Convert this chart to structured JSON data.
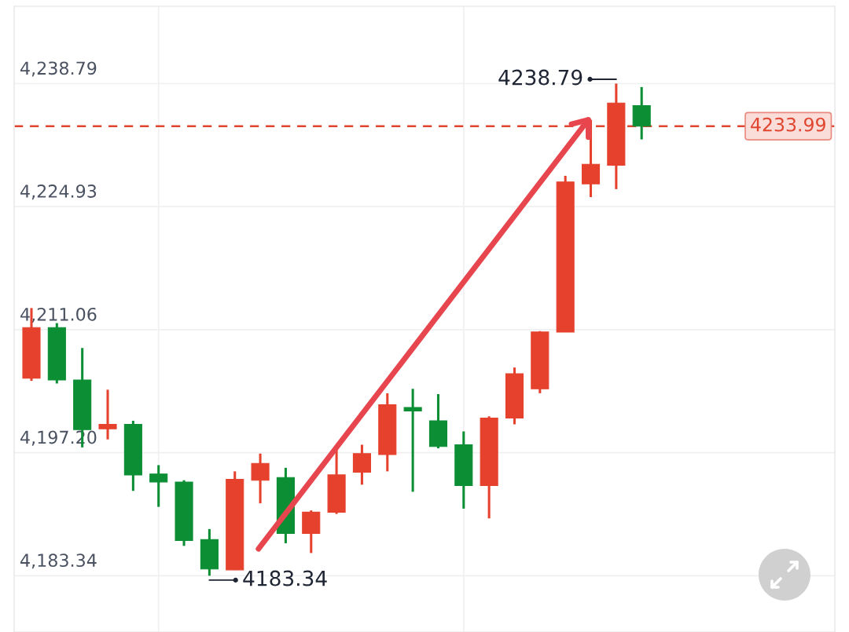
{
  "chart_data": {
    "type": "candlestick",
    "categories": [
      null,
      null,
      null,
      null,
      null,
      null,
      null,
      null,
      null,
      null,
      null,
      null,
      null,
      null,
      null,
      null,
      null,
      null,
      null,
      null,
      null,
      null,
      null,
      null,
      null
    ],
    "ohlc": [
      [
        4205.6,
        4213.5,
        4205.3,
        4211.3
      ],
      [
        4211.3,
        4211.8,
        4205.0,
        4205.4
      ],
      [
        4205.4,
        4209.0,
        4197.8,
        4199.8
      ],
      [
        4199.9,
        4204.3,
        4198.7,
        4200.4
      ],
      [
        4200.4,
        4200.8,
        4192.9,
        4194.7
      ],
      [
        4194.8,
        4195.8,
        4191.1,
        4193.9
      ],
      [
        4193.9,
        4194.1,
        4186.7,
        4187.3
      ],
      [
        4187.4,
        4188.6,
        4183.34,
        4184.1
      ],
      [
        4184.0,
        4195.1,
        4184.0,
        4194.2
      ],
      [
        4194.1,
        4197.1,
        4191.5,
        4196.0
      ],
      [
        4194.4,
        4195.5,
        4187.0,
        4188.1
      ],
      [
        4188.1,
        4190.7,
        4185.9,
        4190.5
      ],
      [
        4190.5,
        4197.8,
        4190.3,
        4194.7
      ],
      [
        4195.0,
        4198.1,
        4193.6,
        4197.1
      ],
      [
        4197.0,
        4203.9,
        4195.1,
        4202.6
      ],
      [
        4202.3,
        4204.4,
        4192.8,
        4201.9
      ],
      [
        4200.8,
        4203.8,
        4197.7,
        4197.9
      ],
      [
        4198.1,
        4199.6,
        4190.9,
        4193.5
      ],
      [
        4193.5,
        4201.3,
        4189.8,
        4201.1
      ],
      [
        4201.1,
        4206.8,
        4200.4,
        4206.1
      ],
      [
        4204.4,
        4210.9,
        4203.9,
        4210.8
      ],
      [
        4210.8,
        4228.4,
        4210.8,
        4227.7
      ],
      [
        4227.5,
        4234.7,
        4226.0,
        4229.7
      ],
      [
        4229.6,
        4238.79,
        4226.9,
        4236.6
      ],
      [
        4236.3,
        4238.4,
        4232.5,
        4233.99
      ]
    ],
    "colors": [
      "#e5412d",
      "#0c8e34",
      "#0c8e34",
      "#e5412d",
      "#0c8e34",
      "#0c8e34",
      "#0c8e34",
      "#0c8e34",
      "#e5412d",
      "#e5412d",
      "#0c8e34",
      "#e5412d",
      "#e5412d",
      "#e5412d",
      "#e5412d",
      "#0c8e34",
      "#0c8e34",
      "#0c8e34",
      "#e5412d",
      "#e5412d",
      "#e5412d",
      "#e5412d",
      "#e5412d",
      "#e5412d",
      "#0c8e34"
    ],
    "ylim": [
      4177.0,
      4247.5
    ],
    "yticks": [
      {
        "value": 4183.34,
        "label": "4,183.34"
      },
      {
        "value": 4197.2,
        "label": "4,197.20"
      },
      {
        "value": 4211.06,
        "label": "4,211.06"
      },
      {
        "value": 4224.93,
        "label": "4,224.93"
      },
      {
        "value": 4238.79,
        "label": "4,238.79"
      }
    ],
    "grid": "y",
    "tick_labels": "y",
    "ref_lines": [
      {
        "axis": "y",
        "value": 4233.99,
        "label": "4233.99",
        "color": "#e0452f",
        "line_style": "dashed"
      }
    ],
    "annotations": [
      "4238.79",
      "4183.34"
    ]
  }
}
